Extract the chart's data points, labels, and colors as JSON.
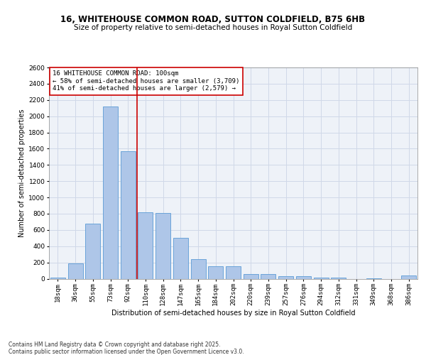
{
  "title": "16, WHITEHOUSE COMMON ROAD, SUTTON COLDFIELD, B75 6HB",
  "subtitle": "Size of property relative to semi-detached houses in Royal Sutton Coldfield",
  "xlabel": "Distribution of semi-detached houses by size in Royal Sutton Coldfield",
  "ylabel": "Number of semi-detached properties",
  "categories": [
    "18sqm",
    "36sqm",
    "55sqm",
    "73sqm",
    "92sqm",
    "110sqm",
    "128sqm",
    "147sqm",
    "165sqm",
    "184sqm",
    "202sqm",
    "220sqm",
    "239sqm",
    "257sqm",
    "276sqm",
    "294sqm",
    "312sqm",
    "331sqm",
    "349sqm",
    "368sqm",
    "386sqm"
  ],
  "values": [
    10,
    185,
    680,
    2120,
    1570,
    820,
    810,
    500,
    240,
    155,
    155,
    55,
    55,
    30,
    30,
    10,
    10,
    0,
    5,
    0,
    40
  ],
  "bar_color": "#aec6e8",
  "bar_edge_color": "#5b9bd5",
  "grid_color": "#d0d8e8",
  "vline_color": "#cc0000",
  "vline_pos": 4.5,
  "annotation_text": "16 WHITEHOUSE COMMON ROAD: 100sqm\n← 58% of semi-detached houses are smaller (3,709)\n41% of semi-detached houses are larger (2,579) →",
  "annotation_box_color": "#ffffff",
  "annotation_box_edge_color": "#cc0000",
  "footer": "Contains HM Land Registry data © Crown copyright and database right 2025.\nContains public sector information licensed under the Open Government Licence v3.0.",
  "ylim": [
    0,
    2600
  ],
  "yticks": [
    0,
    200,
    400,
    600,
    800,
    1000,
    1200,
    1400,
    1600,
    1800,
    2000,
    2200,
    2400,
    2600
  ],
  "bg_color": "#eef2f8",
  "fig_bg_color": "#ffffff",
  "title_fontsize": 8.5,
  "subtitle_fontsize": 7.5,
  "xlabel_fontsize": 7.0,
  "ylabel_fontsize": 7.0,
  "tick_fontsize": 6.5,
  "annot_fontsize": 6.5,
  "footer_fontsize": 5.5
}
